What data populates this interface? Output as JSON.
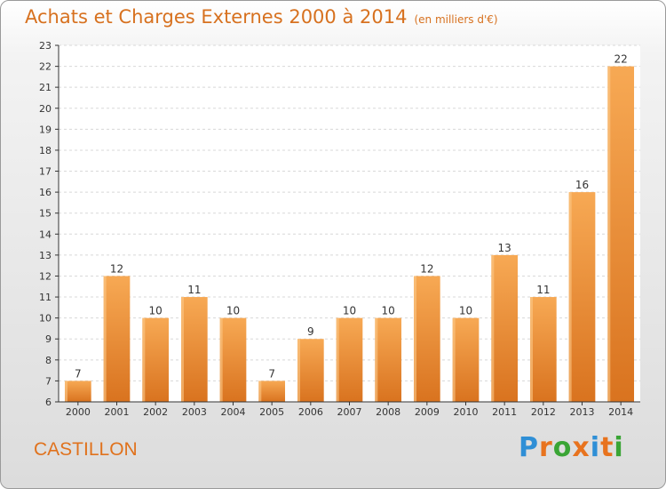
{
  "header": {
    "title": "Achats et Charges Externes 2000 à 2014",
    "unit": "(en milliers d'€)"
  },
  "commune": "CASTILLON",
  "logo": {
    "text": "Proxiti",
    "letters": [
      {
        "ch": "P",
        "color": "#2f8fd6"
      },
      {
        "ch": "r",
        "color": "#e8731e"
      },
      {
        "ch": "o",
        "color": "#3aa535"
      },
      {
        "ch": "x",
        "color": "#e8731e"
      },
      {
        "ch": "i",
        "color": "#2f8fd6"
      },
      {
        "ch": "t",
        "color": "#e8731e"
      },
      {
        "ch": "i",
        "color": "#3aa535"
      }
    ]
  },
  "colors": {
    "bar_light": "#f7a954",
    "bar_dark": "#d9731f",
    "axis": "#333333",
    "grid": "#d8d8d8"
  },
  "chart_data": {
    "type": "bar",
    "title": "Achats et Charges Externes 2000 à 2014",
    "subtitle": "(en milliers d'€)",
    "categories": [
      "2000",
      "2001",
      "2002",
      "2003",
      "2004",
      "2005",
      "2006",
      "2007",
      "2008",
      "2009",
      "2010",
      "2011",
      "2012",
      "2013",
      "2014"
    ],
    "values": [
      7,
      12,
      10,
      11,
      10,
      7,
      9,
      10,
      10,
      12,
      10,
      13,
      11,
      16,
      22
    ],
    "ylim": [
      6,
      23
    ],
    "yticks": [
      6,
      7,
      8,
      9,
      10,
      11,
      12,
      13,
      14,
      15,
      16,
      17,
      18,
      19,
      20,
      21,
      22,
      23
    ],
    "grid": "horizontal",
    "xlabel": "",
    "ylabel": ""
  }
}
